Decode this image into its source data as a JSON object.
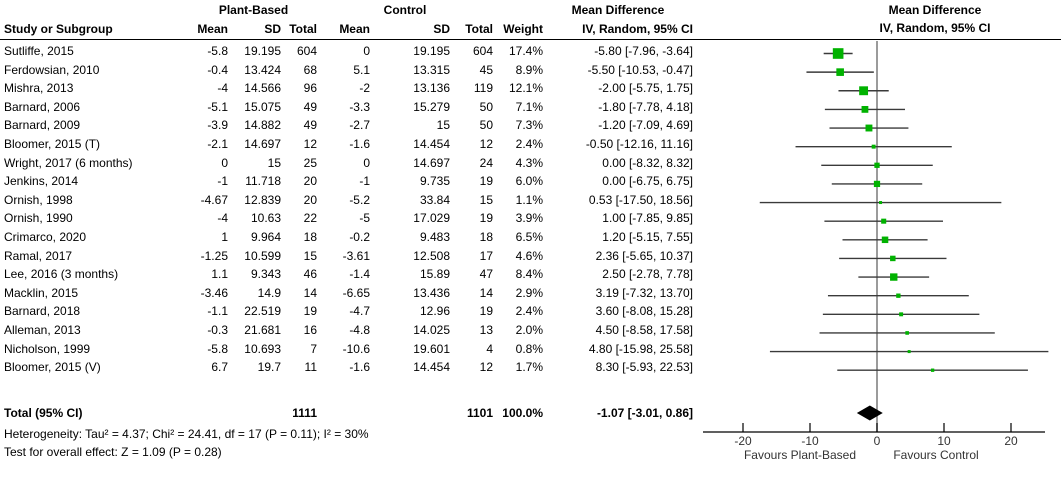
{
  "table": {
    "group_headers": {
      "plant": "Plant-Based",
      "control": "Control",
      "md_text": "Mean Difference",
      "md_plot": "Mean Difference"
    },
    "col_headers": {
      "study": "Study or Subgroup",
      "mean": "Mean",
      "sd": "SD",
      "total": "Total",
      "weight": "Weight",
      "iv_text": "IV, Random, 95% CI",
      "iv_plot": "IV, Random, 95% CI"
    },
    "rows": [
      {
        "name": "Sutliffe, 2015",
        "pm": "-5.8",
        "psd": "19.195",
        "pt": "604",
        "cm": "0",
        "csd": "19.195",
        "ct": "604",
        "w": "17.4%",
        "ci": "-5.80 [-7.96, -3.64]"
      },
      {
        "name": "Ferdowsian, 2010",
        "pm": "-0.4",
        "psd": "13.424",
        "pt": "68",
        "cm": "5.1",
        "csd": "13.315",
        "ct": "45",
        "w": "8.9%",
        "ci": "-5.50 [-10.53, -0.47]"
      },
      {
        "name": "Mishra, 2013",
        "pm": "-4",
        "psd": "14.566",
        "pt": "96",
        "cm": "-2",
        "csd": "13.136",
        "ct": "119",
        "w": "12.1%",
        "ci": "-2.00 [-5.75, 1.75]"
      },
      {
        "name": "Barnard, 2006",
        "pm": "-5.1",
        "psd": "15.075",
        "pt": "49",
        "cm": "-3.3",
        "csd": "15.279",
        "ct": "50",
        "w": "7.1%",
        "ci": "-1.80 [-7.78, 4.18]"
      },
      {
        "name": "Barnard, 2009",
        "pm": "-3.9",
        "psd": "14.882",
        "pt": "49",
        "cm": "-2.7",
        "csd": "15",
        "ct": "50",
        "w": "7.3%",
        "ci": "-1.20 [-7.09, 4.69]"
      },
      {
        "name": "Bloomer, 2015 (T)",
        "pm": "-2.1",
        "psd": "14.697",
        "pt": "12",
        "cm": "-1.6",
        "csd": "14.454",
        "ct": "12",
        "w": "2.4%",
        "ci": "-0.50 [-12.16, 11.16]"
      },
      {
        "name": "Wright, 2017 (6 months)",
        "pm": "0",
        "psd": "15",
        "pt": "25",
        "cm": "0",
        "csd": "14.697",
        "ct": "24",
        "w": "4.3%",
        "ci": "0.00 [-8.32, 8.32]"
      },
      {
        "name": "Jenkins, 2014",
        "pm": "-1",
        "psd": "11.718",
        "pt": "20",
        "cm": "-1",
        "csd": "9.735",
        "ct": "19",
        "w": "6.0%",
        "ci": "0.00 [-6.75, 6.75]"
      },
      {
        "name": "Ornish, 1998",
        "pm": "-4.67",
        "psd": "12.839",
        "pt": "20",
        "cm": "-5.2",
        "csd": "33.84",
        "ct": "15",
        "w": "1.1%",
        "ci": "0.53 [-17.50, 18.56]"
      },
      {
        "name": "Ornish, 1990",
        "pm": "-4",
        "psd": "10.63",
        "pt": "22",
        "cm": "-5",
        "csd": "17.029",
        "ct": "19",
        "w": "3.9%",
        "ci": "1.00 [-7.85, 9.85]"
      },
      {
        "name": "Crimarco, 2020",
        "pm": "1",
        "psd": "9.964",
        "pt": "18",
        "cm": "-0.2",
        "csd": "9.483",
        "ct": "18",
        "w": "6.5%",
        "ci": "1.20 [-5.15, 7.55]"
      },
      {
        "name": "Ramal, 2017",
        "pm": "-1.25",
        "psd": "10.599",
        "pt": "15",
        "cm": "-3.61",
        "csd": "12.508",
        "ct": "17",
        "w": "4.6%",
        "ci": "2.36 [-5.65, 10.37]"
      },
      {
        "name": "Lee, 2016 (3 months)",
        "pm": "1.1",
        "psd": "9.343",
        "pt": "46",
        "cm": "-1.4",
        "csd": "15.89",
        "ct": "47",
        "w": "8.4%",
        "ci": "2.50 [-2.78, 7.78]"
      },
      {
        "name": "Macklin, 2015",
        "pm": "-3.46",
        "psd": "14.9",
        "pt": "14",
        "cm": "-6.65",
        "csd": "13.436",
        "ct": "14",
        "w": "2.9%",
        "ci": "3.19 [-7.32, 13.70]"
      },
      {
        "name": "Barnard, 2018",
        "pm": "-1.1",
        "psd": "22.519",
        "pt": "19",
        "cm": "-4.7",
        "csd": "12.96",
        "ct": "19",
        "w": "2.4%",
        "ci": "3.60 [-8.08, 15.28]"
      },
      {
        "name": "Alleman, 2013",
        "pm": "-0.3",
        "psd": "21.681",
        "pt": "16",
        "cm": "-4.8",
        "csd": "14.025",
        "ct": "13",
        "w": "2.0%",
        "ci": "4.50 [-8.58, 17.58]"
      },
      {
        "name": "Nicholson, 1999",
        "pm": "-5.8",
        "psd": "10.693",
        "pt": "7",
        "cm": "-10.6",
        "csd": "19.601",
        "ct": "4",
        "w": "0.8%",
        "ci": "4.80 [-15.98, 25.58]"
      },
      {
        "name": "Bloomer, 2015 (V)",
        "pm": "6.7",
        "psd": "19.7",
        "pt": "11",
        "cm": "-1.6",
        "csd": "14.454",
        "ct": "12",
        "w": "1.7%",
        "ci": "8.30 [-5.93, 22.53]"
      }
    ],
    "total_row": {
      "label": "Total (95% CI)",
      "pt": "1111",
      "ct": "1101",
      "w": "100.0%",
      "ci": "-1.07 [-3.01, 0.86]"
    },
    "footer": {
      "0": "Heterogeneity: Tau² = 4.37; Chi² = 24.41, df = 17 (P = 0.11); I² = 30%",
      "1": "Test for overall effect: Z = 1.09 (P = 0.28)"
    }
  },
  "chart_data": {
    "type": "forest",
    "effect_measure": "Mean Difference, IV, Random, 95% CI",
    "xticks": [
      -20,
      -10,
      0,
      10,
      20
    ],
    "xlim": [
      -26,
      27
    ],
    "zero_line": 0,
    "favours_left": "Favours Plant-Based",
    "favours_right": "Favours Control",
    "studies": [
      {
        "name": "Sutliffe, 2015",
        "est": -5.8,
        "lo": -7.96,
        "hi": -3.64,
        "weight": 17.4
      },
      {
        "name": "Ferdowsian, 2010",
        "est": -5.5,
        "lo": -10.53,
        "hi": -0.47,
        "weight": 8.9
      },
      {
        "name": "Mishra, 2013",
        "est": -2.0,
        "lo": -5.75,
        "hi": 1.75,
        "weight": 12.1
      },
      {
        "name": "Barnard, 2006",
        "est": -1.8,
        "lo": -7.78,
        "hi": 4.18,
        "weight": 7.1
      },
      {
        "name": "Barnard, 2009",
        "est": -1.2,
        "lo": -7.09,
        "hi": 4.69,
        "weight": 7.3
      },
      {
        "name": "Bloomer, 2015 (T)",
        "est": -0.5,
        "lo": -12.16,
        "hi": 11.16,
        "weight": 2.4
      },
      {
        "name": "Wright, 2017 (6 months)",
        "est": 0.0,
        "lo": -8.32,
        "hi": 8.32,
        "weight": 4.3
      },
      {
        "name": "Jenkins, 2014",
        "est": 0.0,
        "lo": -6.75,
        "hi": 6.75,
        "weight": 6.0
      },
      {
        "name": "Ornish, 1998",
        "est": 0.53,
        "lo": -17.5,
        "hi": 18.56,
        "weight": 1.1
      },
      {
        "name": "Ornish, 1990",
        "est": 1.0,
        "lo": -7.85,
        "hi": 9.85,
        "weight": 3.9
      },
      {
        "name": "Crimarco, 2020",
        "est": 1.2,
        "lo": -5.15,
        "hi": 7.55,
        "weight": 6.5
      },
      {
        "name": "Ramal, 2017",
        "est": 2.36,
        "lo": -5.65,
        "hi": 10.37,
        "weight": 4.6
      },
      {
        "name": "Lee, 2016 (3 months)",
        "est": 2.5,
        "lo": -2.78,
        "hi": 7.78,
        "weight": 8.4
      },
      {
        "name": "Macklin, 2015",
        "est": 3.19,
        "lo": -7.32,
        "hi": 13.7,
        "weight": 2.9
      },
      {
        "name": "Barnard, 2018",
        "est": 3.6,
        "lo": -8.08,
        "hi": 15.28,
        "weight": 2.4
      },
      {
        "name": "Alleman, 2013",
        "est": 4.5,
        "lo": -8.58,
        "hi": 17.58,
        "weight": 2.0
      },
      {
        "name": "Nicholson, 1999",
        "est": 4.8,
        "lo": -15.98,
        "hi": 25.58,
        "weight": 0.8
      },
      {
        "name": "Bloomer, 2015 (V)",
        "est": 8.3,
        "lo": -5.93,
        "hi": 22.53,
        "weight": 1.7
      }
    ],
    "total": {
      "est": -1.07,
      "lo": -3.01,
      "hi": 0.86
    }
  },
  "colors": {
    "marker_green": "#00b200",
    "ci_line": "#3a3a3a",
    "zero_line": "#7a7a7a",
    "axis": "#000000",
    "axis_text": "#333333"
  }
}
